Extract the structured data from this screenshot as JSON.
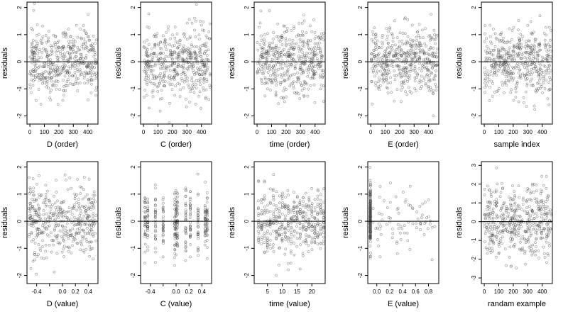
{
  "chart_data": [
    {
      "type": "scatter",
      "title": "",
      "xlabel": "D (order)",
      "ylabel": "residuals",
      "xlim": [
        -20,
        470
      ],
      "ylim": [
        -2.3,
        2.2
      ],
      "xticks": [
        0,
        100,
        200,
        300,
        400
      ],
      "xtick_labels": [
        "0",
        "100",
        "200",
        "300",
        "400"
      ],
      "yticks": [
        -2,
        -1,
        0,
        1,
        2
      ],
      "ytick_labels": [
        "-2",
        "-1",
        "0",
        "1",
        "2"
      ],
      "hline": 0,
      "grid": false,
      "legend": "none",
      "marker": "open-circle",
      "point_color": "#444444",
      "series": [
        {
          "pattern": "uniform",
          "n": 470,
          "x_range": [
            0,
            460
          ],
          "y_sd": 0.62,
          "seed": 11
        }
      ]
    },
    {
      "type": "scatter",
      "title": "",
      "xlabel": "C (order)",
      "ylabel": "residuals",
      "xlim": [
        -20,
        470
      ],
      "ylim": [
        -2.3,
        2.2
      ],
      "xticks": [
        0,
        100,
        200,
        300,
        400
      ],
      "xtick_labels": [
        "0",
        "100",
        "200",
        "300",
        "400"
      ],
      "yticks": [
        -2,
        -1,
        0,
        1,
        2
      ],
      "ytick_labels": [
        "-2",
        "-1",
        "0",
        "1",
        "2"
      ],
      "hline": 0,
      "grid": false,
      "legend": "none",
      "marker": "open-circle",
      "point_color": "#444444",
      "series": [
        {
          "pattern": "uniform",
          "n": 470,
          "x_range": [
            0,
            460
          ],
          "y_sd": 0.62,
          "seed": 23
        }
      ]
    },
    {
      "type": "scatter",
      "title": "",
      "xlabel": "time (order)",
      "ylabel": "residuals",
      "xlim": [
        -20,
        470
      ],
      "ylim": [
        -2.3,
        2.2
      ],
      "xticks": [
        0,
        100,
        200,
        300,
        400
      ],
      "xtick_labels": [
        "0",
        "100",
        "200",
        "300",
        "400"
      ],
      "yticks": [
        -2,
        -1,
        0,
        1,
        2
      ],
      "ytick_labels": [
        "-2",
        "-1",
        "0",
        "1",
        "2"
      ],
      "hline": 0,
      "grid": false,
      "legend": "none",
      "marker": "open-circle",
      "point_color": "#444444",
      "series": [
        {
          "pattern": "uniform",
          "n": 470,
          "x_range": [
            0,
            460
          ],
          "y_sd": 0.62,
          "seed": 37
        }
      ]
    },
    {
      "type": "scatter",
      "title": "",
      "xlabel": "E (order)",
      "ylabel": "residuals",
      "xlim": [
        -20,
        470
      ],
      "ylim": [
        -2.3,
        2.2
      ],
      "xticks": [
        0,
        100,
        200,
        300,
        400
      ],
      "xtick_labels": [
        "0",
        "100",
        "200",
        "300",
        "400"
      ],
      "yticks": [
        -2,
        -1,
        0,
        1,
        2
      ],
      "ytick_labels": [
        "-2",
        "-1",
        "0",
        "1",
        "2"
      ],
      "hline": 0,
      "grid": false,
      "legend": "none",
      "marker": "open-circle",
      "point_color": "#444444",
      "series": [
        {
          "pattern": "uniform",
          "n": 470,
          "x_range": [
            0,
            460
          ],
          "y_sd": 0.62,
          "seed": 41
        }
      ]
    },
    {
      "type": "scatter",
      "title": "",
      "xlabel": "sample index",
      "ylabel": "residuals",
      "xlim": [
        -20,
        470
      ],
      "ylim": [
        -2.3,
        2.2
      ],
      "xticks": [
        0,
        100,
        200,
        300,
        400
      ],
      "xtick_labels": [
        "0",
        "100",
        "200",
        "300",
        "400"
      ],
      "yticks": [
        -2,
        -1,
        0,
        1,
        2
      ],
      "ytick_labels": [
        "-2",
        "-1",
        "0",
        "1",
        "2"
      ],
      "hline": 0,
      "grid": false,
      "legend": "none",
      "marker": "open-circle",
      "point_color": "#444444",
      "series": [
        {
          "pattern": "uniform",
          "n": 470,
          "x_range": [
            0,
            460
          ],
          "y_sd": 0.62,
          "seed": 53
        }
      ]
    },
    {
      "type": "scatter",
      "title": "",
      "xlabel": "D (value)",
      "ylabel": "residuals",
      "xlim": [
        -0.55,
        0.55
      ],
      "ylim": [
        -2.3,
        2.2
      ],
      "xticks": [
        -0.4,
        -0.2,
        0,
        0.2,
        0.4
      ],
      "xtick_labels": [
        "-0.4",
        "",
        "0.0",
        "0.2",
        "0.4"
      ],
      "yticks": [
        -2,
        -1,
        0,
        1,
        2
      ],
      "ytick_labels": [
        "-2",
        "-1",
        "0",
        "1",
        "2"
      ],
      "hline": 0,
      "grid": false,
      "legend": "none",
      "marker": "open-circle",
      "point_color": "#444444",
      "series": [
        {
          "pattern": "uniform",
          "n": 430,
          "x_range": [
            -0.52,
            0.52
          ],
          "y_sd": 0.6,
          "seed": 67
        }
      ]
    },
    {
      "type": "scatter",
      "title": "",
      "xlabel": "C (value)",
      "ylabel": "residuals",
      "xlim": [
        -0.55,
        0.55
      ],
      "ylim": [
        -2.3,
        2.2
      ],
      "xticks": [
        -0.4,
        -0.2,
        0,
        0.2,
        0.4
      ],
      "xtick_labels": [
        "-0.4",
        "",
        "0.0",
        "0.2",
        "0.4"
      ],
      "yticks": [
        -2,
        -1,
        0,
        1,
        2
      ],
      "ytick_labels": [
        "-2",
        "-1",
        "0",
        "1",
        "2"
      ],
      "hline": 0,
      "grid": false,
      "legend": "none",
      "marker": "open-circle",
      "point_color": "#444444",
      "series": [
        {
          "pattern": "columns",
          "columns": [
            -0.48,
            -0.44,
            -0.32,
            -0.2,
            -0.02,
            0.0,
            0.02,
            0.15,
            0.22,
            0.34,
            0.45,
            0.48
          ],
          "n_per_column": 32,
          "jitter": 0.004,
          "y_sd": 0.6,
          "seed": 71
        }
      ]
    },
    {
      "type": "scatter",
      "title": "",
      "xlabel": "time (value)",
      "ylabel": "residuals",
      "xlim": [
        0.5,
        24.5
      ],
      "ylim": [
        -2.3,
        2.2
      ],
      "xticks": [
        5,
        10,
        15,
        20
      ],
      "xtick_labels": [
        "5",
        "10",
        "15",
        "20"
      ],
      "yticks": [
        -2,
        -1,
        0,
        1,
        2
      ],
      "ytick_labels": [
        "-2",
        "-1",
        "0",
        "1",
        "2"
      ],
      "hline": 0,
      "grid": false,
      "legend": "none",
      "marker": "open-circle",
      "point_color": "#444444",
      "series": [
        {
          "pattern": "columns",
          "columns": [
            2,
            3,
            4,
            5,
            6,
            7,
            8,
            9,
            10,
            11,
            12,
            13,
            14,
            15,
            16,
            17,
            18,
            19,
            20,
            21,
            22,
            23,
            24
          ],
          "n_per_column": 19,
          "jitter": 0.12,
          "y_sd": 0.6,
          "seed": 83
        }
      ]
    },
    {
      "type": "scatter",
      "title": "",
      "xlabel": "E (value)",
      "ylabel": "residuals",
      "xlim": [
        -0.14,
        0.96
      ],
      "ylim": [
        -2.3,
        2.2
      ],
      "xticks": [
        0,
        0.2,
        0.4,
        0.6,
        0.8
      ],
      "xtick_labels": [
        "0.0",
        "0.2",
        "0.4",
        "0.6",
        "0.8"
      ],
      "yticks": [
        -2,
        -1,
        0,
        1,
        2
      ],
      "ytick_labels": [
        "-2",
        "-1",
        "0",
        "1",
        "2"
      ],
      "hline": 0,
      "grid": false,
      "legend": "none",
      "marker": "open-circle",
      "point_color": "#444444",
      "series": [
        {
          "pattern": "column",
          "x": -0.1,
          "n": 200,
          "jitter": 0.004,
          "y_sd": 0.65,
          "seed": 97
        },
        {
          "pattern": "uniform",
          "n": 80,
          "x_range": [
            -0.06,
            0.92
          ],
          "y_sd": 0.55,
          "seed": 101
        }
      ]
    },
    {
      "type": "scatter",
      "title": "",
      "xlabel": "randam example",
      "ylabel": "residuals",
      "xlim": [
        -20,
        470
      ],
      "ylim": [
        -3.3,
        3.2
      ],
      "xticks": [
        0,
        100,
        200,
        300,
        400
      ],
      "xtick_labels": [
        "0",
        "100",
        "200",
        "300",
        "400"
      ],
      "yticks": [
        -3,
        -2,
        -1,
        0,
        1,
        2,
        3
      ],
      "ytick_labels": [
        "-3",
        "-2",
        "-1",
        "0",
        "1",
        "2",
        "3"
      ],
      "hline": 0,
      "grid": false,
      "legend": "none",
      "marker": "open-circle",
      "point_color": "#444444",
      "series": [
        {
          "pattern": "uniform",
          "n": 470,
          "x_range": [
            0,
            460
          ],
          "y_sd": 1.0,
          "seed": 113
        }
      ]
    }
  ]
}
